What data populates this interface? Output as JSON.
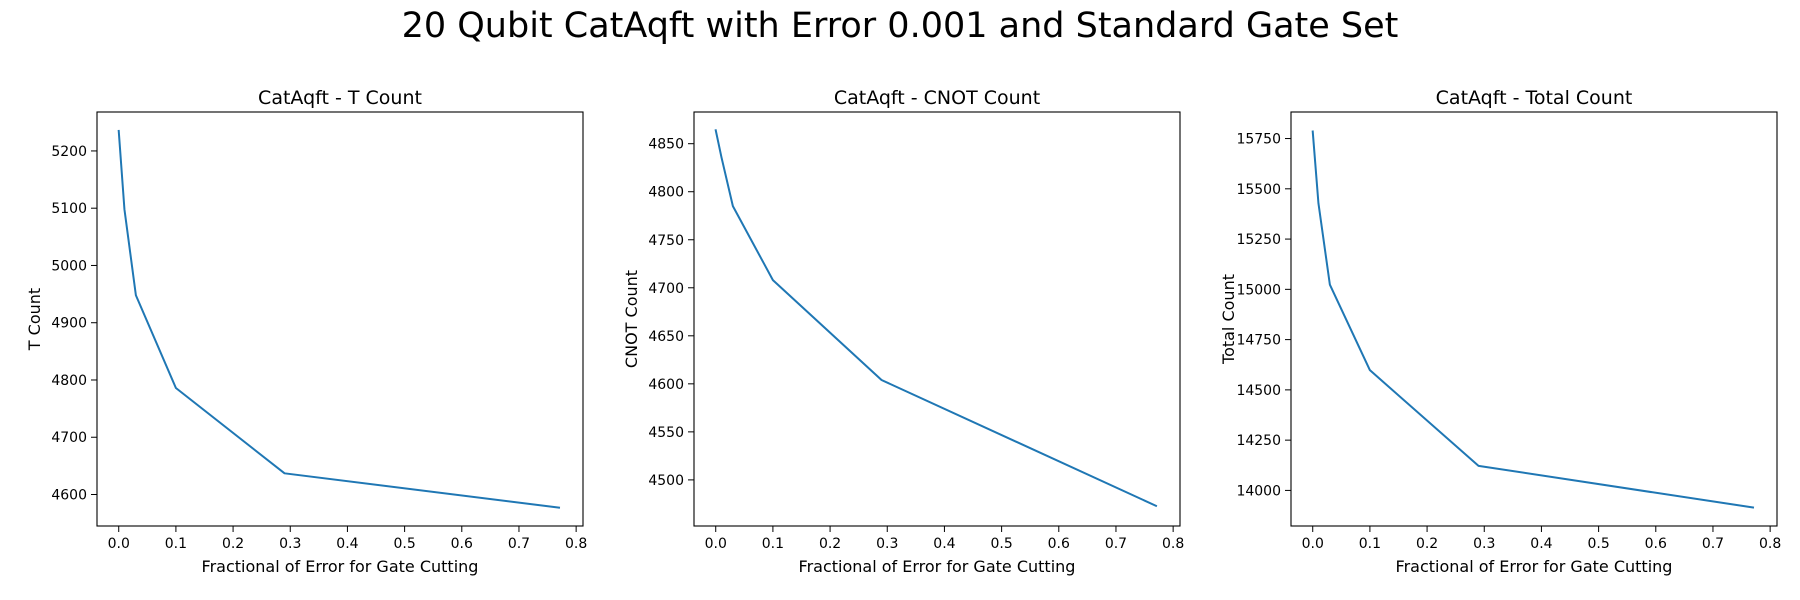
{
  "figure": {
    "suptitle": "20 Qubit CatAqft with Error 0.001 and Standard Gate Set"
  },
  "chart_data": [
    {
      "type": "line",
      "title": "CatAqft - T Count",
      "xlabel": "Fractional of Error for Gate Cutting",
      "ylabel": "T Count",
      "xlim": [
        -0.038,
        0.812
      ],
      "ylim": [
        4545,
        5268
      ],
      "xticks": [
        0.0,
        0.1,
        0.2,
        0.3,
        0.4,
        0.5,
        0.6,
        0.7,
        0.8
      ],
      "xtick_labels": [
        "0.0",
        "0.1",
        "0.2",
        "0.3",
        "0.4",
        "0.5",
        "0.6",
        "0.7",
        "0.8"
      ],
      "yticks": [
        4600,
        4700,
        4800,
        4900,
        5000,
        5100,
        5200
      ],
      "ytick_labels": [
        "4600",
        "4700",
        "4800",
        "4900",
        "5000",
        "5100",
        "5200"
      ],
      "grid": false,
      "color": "#1f77b4",
      "series": [
        {
          "x": [
            0.0,
            0.01,
            0.03,
            0.1,
            0.29,
            0.77
          ],
          "y": [
            5235,
            5098,
            4948,
            4786,
            4637,
            4577
          ]
        }
      ]
    },
    {
      "type": "line",
      "title": "CatAqft - CNOT Count",
      "xlabel": "Fractional of Error for Gate Cutting",
      "ylabel": "CNOT Count",
      "xlim": [
        -0.038,
        0.812
      ],
      "ylim": [
        4452,
        4883
      ],
      "xticks": [
        0.0,
        0.1,
        0.2,
        0.3,
        0.4,
        0.5,
        0.6,
        0.7,
        0.8
      ],
      "xtick_labels": [
        "0.0",
        "0.1",
        "0.2",
        "0.3",
        "0.4",
        "0.5",
        "0.6",
        "0.7",
        "0.8"
      ],
      "yticks": [
        4500,
        4550,
        4600,
        4650,
        4700,
        4750,
        4800,
        4850
      ],
      "ytick_labels": [
        "4500",
        "4550",
        "4600",
        "4650",
        "4700",
        "4750",
        "4800",
        "4850"
      ],
      "grid": false,
      "color": "#1f77b4",
      "series": [
        {
          "x": [
            0.0,
            0.01,
            0.03,
            0.1,
            0.29,
            0.77
          ],
          "y": [
            4864,
            4836,
            4785,
            4708,
            4604,
            4473
          ]
        }
      ]
    },
    {
      "type": "line",
      "title": "CatAqft - Total Count",
      "xlabel": "Fractional of Error for Gate Cutting",
      "ylabel": "Total Count",
      "xlim": [
        -0.038,
        0.812
      ],
      "ylim": [
        13823,
        15882
      ],
      "xticks": [
        0.0,
        0.1,
        0.2,
        0.3,
        0.4,
        0.5,
        0.6,
        0.7,
        0.8
      ],
      "xtick_labels": [
        "0.0",
        "0.1",
        "0.2",
        "0.3",
        "0.4",
        "0.5",
        "0.6",
        "0.7",
        "0.8"
      ],
      "yticks": [
        14000,
        14250,
        14500,
        14750,
        15000,
        15250,
        15500,
        15750
      ],
      "ytick_labels": [
        "14000",
        "14250",
        "14500",
        "14750",
        "15000",
        "15250",
        "15500",
        "15750"
      ],
      "grid": false,
      "color": "#1f77b4",
      "series": [
        {
          "x": [
            0.0,
            0.01,
            0.03,
            0.1,
            0.29,
            0.77
          ],
          "y": [
            15785,
            15428,
            15023,
            14598,
            14122,
            13915
          ]
        }
      ]
    }
  ]
}
